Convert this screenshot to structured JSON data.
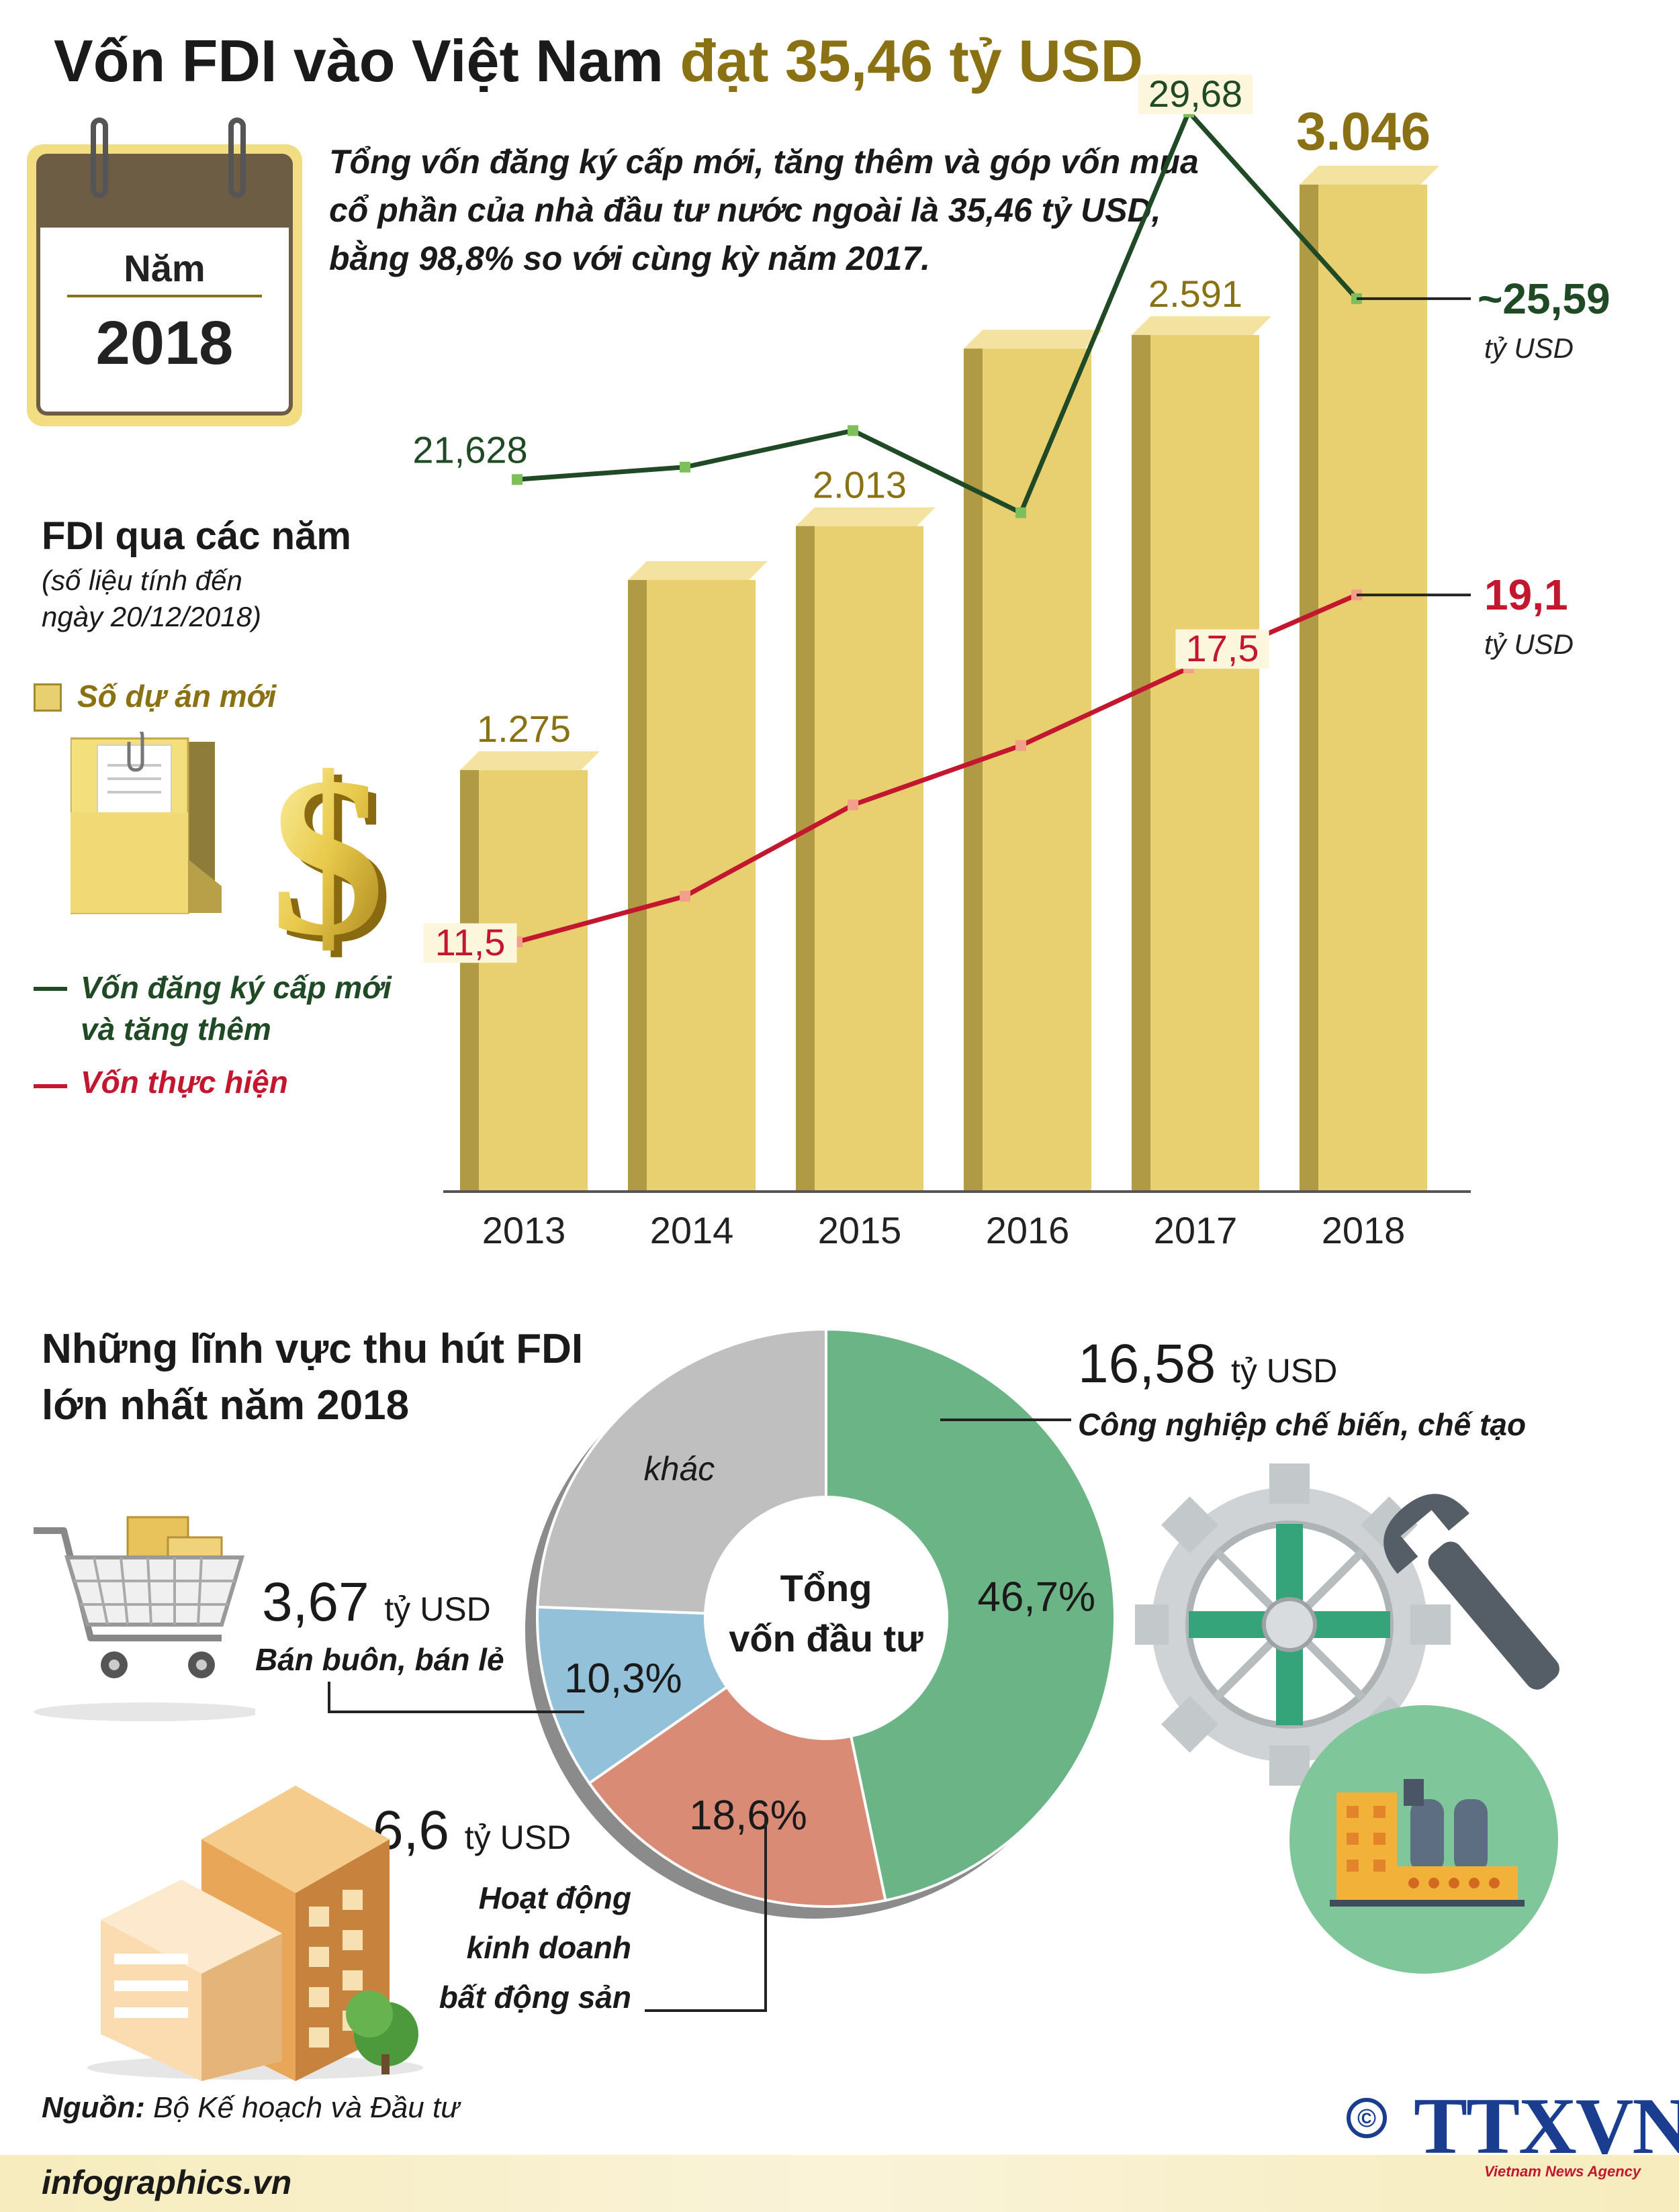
{
  "title": {
    "part1": "Vốn FDI vào Việt Nam",
    "part2": "đạt 35,46 tỷ USD"
  },
  "calendar": {
    "label": "Năm",
    "year": "2018"
  },
  "intro": "Tổng vốn đăng ký cấp mới, tăng thêm và góp vốn mua cổ phần của nhà đầu tư nước ngoài là 35,46 tỷ USD, bằng 98,8% so với cùng kỳ năm 2017.",
  "fdi_section": {
    "title": "FDI qua các năm",
    "note": "(số liệu tính đến ngày 20/12/2018)",
    "legend_projects": "Số dự án mới",
    "legend_registered": "Vốn đăng ký cấp mới và tăng thêm",
    "legend_realized": "Vốn thực hiện"
  },
  "colors": {
    "bar": "#e8cf6f",
    "bar_side": "#b09a45",
    "bar_top": "#f4e3a0",
    "registered_line": "#1f4a25",
    "registered_marker": "#7dbf5a",
    "realized_line": "#c3162f",
    "realized_marker": "#f2a08c",
    "bar_label": "#8a7114"
  },
  "chart_data": [
    {
      "type": "bar",
      "categories": [
        "2013",
        "2014",
        "2015",
        "2016",
        "2017",
        "2018"
      ],
      "series": [
        {
          "name": "Số dự án mới",
          "values": [
            1275,
            1850,
            2013,
            2550,
            2591,
            3046
          ],
          "labels": [
            "1.275",
            "",
            "2.013",
            "",
            "2.591",
            "3.046"
          ]
        },
        {
          "name": "Vốn đăng ký cấp mới và tăng thêm",
          "values": [
            21.628,
            21.9,
            22.7,
            20.9,
            29.68,
            25.59
          ],
          "labels": [
            "21,628",
            "",
            "",
            "",
            "29,68",
            "~25,59"
          ],
          "unit": "tỷ USD"
        },
        {
          "name": "Vốn thực hiện",
          "values": [
            11.5,
            12.5,
            14.5,
            15.8,
            17.5,
            19.1
          ],
          "labels": [
            "11,5",
            "",
            "",
            "",
            "17,5",
            "19,1"
          ],
          "unit": "tỷ USD"
        }
      ]
    },
    {
      "type": "pie",
      "title": "Những lĩnh vực thu hút FDI lớn nhất năm 2018",
      "center_label": "Tổng vốn đầu tư",
      "slices": [
        {
          "name": "Công nghiệp chế biến, chế tạo",
          "percent": 46.7,
          "label": "46,7%",
          "value_label": "16,58",
          "unit": "tỷ USD",
          "color": "#6ab485"
        },
        {
          "name": "Hoạt động kinh doanh bất động sản",
          "percent": 18.6,
          "label": "18,6%",
          "value_label": "6,6",
          "unit": "tỷ USD",
          "color": "#d98b76"
        },
        {
          "name": "Bán buôn, bán lẻ",
          "percent": 10.3,
          "label": "10,3%",
          "value_label": "3,67",
          "unit": "tỷ USD",
          "color": "#93c1d9"
        },
        {
          "name": "khác",
          "percent": 24.4,
          "label": "khác",
          "color": "#bfbfbf"
        }
      ]
    }
  ],
  "sectors": {
    "title": "Những lĩnh vực thu hút FDI lớn nhất năm 2018",
    "manufacturing": {
      "value": "16,58",
      "unit": "tỷ USD",
      "name": "Công nghiệp chế biến, chế tạo"
    },
    "retail": {
      "value": "3,67",
      "unit": "tỷ USD",
      "name": "Bán buôn, bán lẻ"
    },
    "realestate": {
      "value": "6,6",
      "unit": "tỷ USD",
      "name": "Hoạt động kinh doanh bất động sản"
    }
  },
  "footer": {
    "source_label": "Nguồn:",
    "source_text": "Bộ Kế hoạch và Đầu tư",
    "site": "infographics.vn",
    "logo": "TTXVN",
    "logo_sub": "Vietnam News Agency",
    "copyright": "©"
  }
}
